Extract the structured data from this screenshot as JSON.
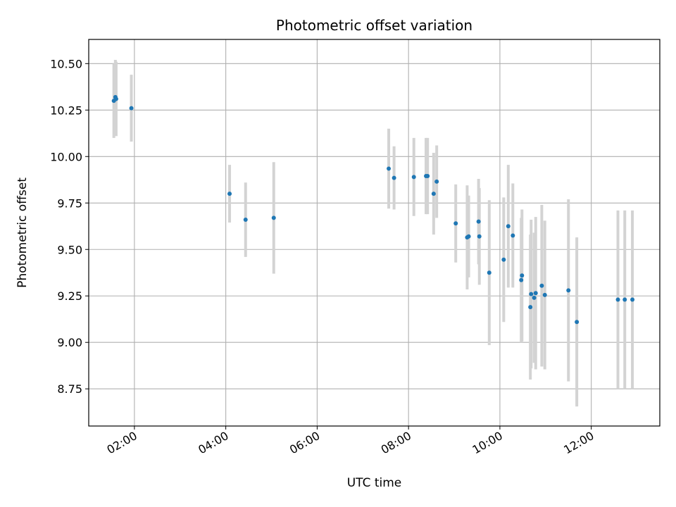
{
  "chart_data": {
    "type": "scatter",
    "title": "Photometric offset variation",
    "xlabel": "UTC time",
    "ylabel": "Photometric offset",
    "x_tick_labels": [
      "02:00",
      "04:00",
      "06:00",
      "08:00",
      "10:00",
      "12:00"
    ],
    "y_tick_labels": [
      "8.75",
      "9.00",
      "9.25",
      "9.50",
      "9.75",
      "10.00",
      "10.25",
      "10.50"
    ],
    "xlim": [
      "01:00",
      "13:30"
    ],
    "ylim": [
      8.55,
      10.63
    ],
    "grid": true,
    "marker_color": "#1f77b4",
    "errorbar_color": "#d3d3d3",
    "points": [
      {
        "x": "01:33",
        "y": 10.3,
        "yerr": 0.2
      },
      {
        "x": "01:35",
        "y": 10.32,
        "yerr": 0.2
      },
      {
        "x": "01:36",
        "y": 10.31,
        "yerr": 0.2
      },
      {
        "x": "01:56",
        "y": 10.26,
        "yerr": 0.18
      },
      {
        "x": "04:05",
        "y": 9.8,
        "yerr": 0.155
      },
      {
        "x": "04:26",
        "y": 9.66,
        "yerr": 0.2
      },
      {
        "x": "05:03",
        "y": 9.67,
        "yerr": 0.3
      },
      {
        "x": "07:34",
        "y": 9.935,
        "yerr": 0.215
      },
      {
        "x": "07:41",
        "y": 9.885,
        "yerr": 0.17
      },
      {
        "x": "08:07",
        "y": 9.89,
        "yerr": 0.21
      },
      {
        "x": "08:23",
        "y": 9.895,
        "yerr": 0.205
      },
      {
        "x": "08:25",
        "y": 9.895,
        "yerr": 0.205
      },
      {
        "x": "08:33",
        "y": 9.8,
        "yerr": 0.22
      },
      {
        "x": "08:37",
        "y": 9.865,
        "yerr": 0.195
      },
      {
        "x": "09:02",
        "y": 9.64,
        "yerr": 0.21
      },
      {
        "x": "09:17",
        "y": 9.565,
        "yerr": 0.28
      },
      {
        "x": "09:19",
        "y": 9.57,
        "yerr": 0.22
      },
      {
        "x": "09:32",
        "y": 9.65,
        "yerr": 0.23
      },
      {
        "x": "09:33",
        "y": 9.57,
        "yerr": 0.26
      },
      {
        "x": "09:46",
        "y": 9.375,
        "yerr": 0.39
      },
      {
        "x": "10:05",
        "y": 9.445,
        "yerr": 0.335
      },
      {
        "x": "10:11",
        "y": 9.625,
        "yerr": 0.33
      },
      {
        "x": "10:17",
        "y": 9.575,
        "yerr": 0.28
      },
      {
        "x": "10:28",
        "y": 9.335,
        "yerr": 0.335
      },
      {
        "x": "10:29",
        "y": 9.36,
        "yerr": 0.355
      },
      {
        "x": "10:40",
        "y": 9.19,
        "yerr": 0.39
      },
      {
        "x": "10:41",
        "y": 9.26,
        "yerr": 0.4
      },
      {
        "x": "10:45",
        "y": 9.24,
        "yerr": 0.35
      },
      {
        "x": "10:47",
        "y": 9.265,
        "yerr": 0.41
      },
      {
        "x": "10:55",
        "y": 9.305,
        "yerr": 0.435
      },
      {
        "x": "10:59",
        "y": 9.255,
        "yerr": 0.4
      },
      {
        "x": "11:30",
        "y": 9.28,
        "yerr": 0.49
      },
      {
        "x": "11:41",
        "y": 9.11,
        "yerr": 0.455
      },
      {
        "x": "12:35",
        "y": 9.23,
        "yerr": 0.48
      },
      {
        "x": "12:44",
        "y": 9.23,
        "yerr": 0.48
      },
      {
        "x": "12:54",
        "y": 9.23,
        "yerr": 0.48
      }
    ]
  }
}
